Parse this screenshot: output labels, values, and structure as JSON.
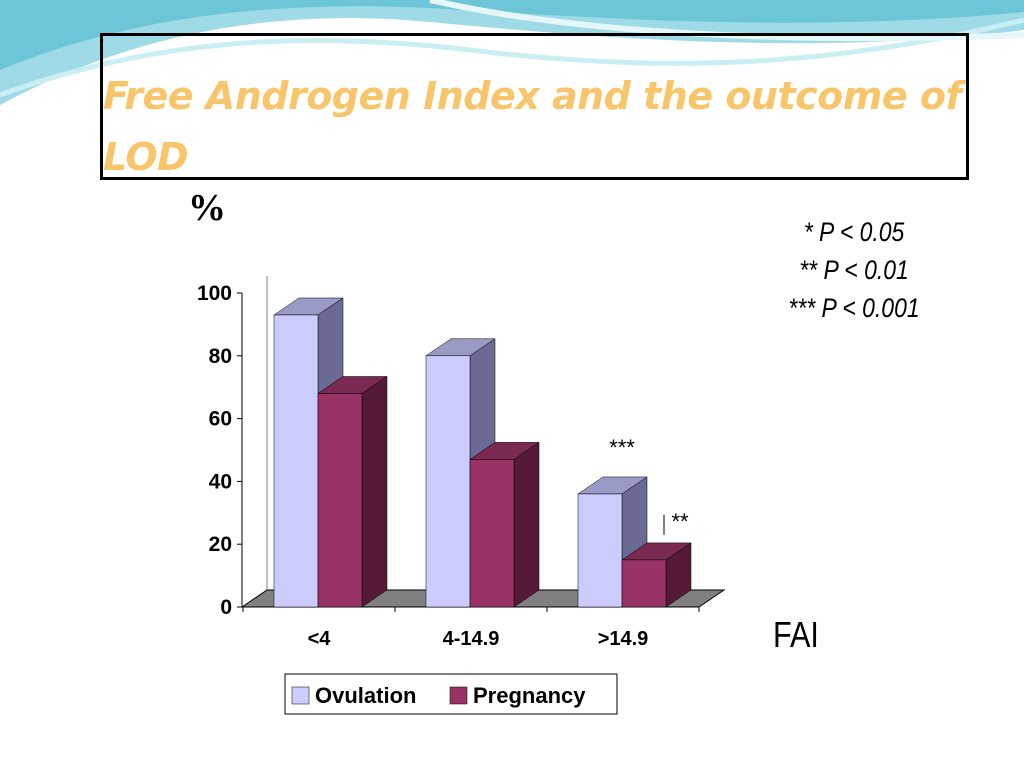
{
  "slide": {
    "title": "Free Androgen Index and the outcome of LOD",
    "unit_label": "%",
    "x_axis_label": "FAI",
    "significance_key": [
      "* P < 0.05",
      "** P < 0.01",
      "*** P < 0.001"
    ]
  },
  "colors": {
    "ovulation_front": "#ccccff",
    "ovulation_side": "#6a6a94",
    "ovulation_top": "#9a9ac6",
    "pregnancy_front": "#993366",
    "pregnancy_side": "#551a37",
    "pregnancy_top": "#7a2950",
    "title": "#f9c56a",
    "floor": "#808080"
  },
  "chart_data": {
    "type": "bar",
    "categories": [
      "<4",
      "4-14.9",
      ">14.9"
    ],
    "series": [
      {
        "name": "Ovulation",
        "values": [
          93,
          80,
          36
        ]
      },
      {
        "name": "Pregnancy",
        "values": [
          68,
          47,
          15
        ]
      }
    ],
    "ylim": [
      0,
      100
    ],
    "yticks": [
      "0",
      "20",
      "40",
      "60",
      "80",
      "100"
    ],
    "annotations": [
      {
        "category": ">14.9",
        "series": "Ovulation",
        "text": "***"
      },
      {
        "category": ">14.9",
        "series": "Pregnancy",
        "text": "**"
      }
    ],
    "legend_position": "bottom",
    "grid": false,
    "style": "3d"
  }
}
